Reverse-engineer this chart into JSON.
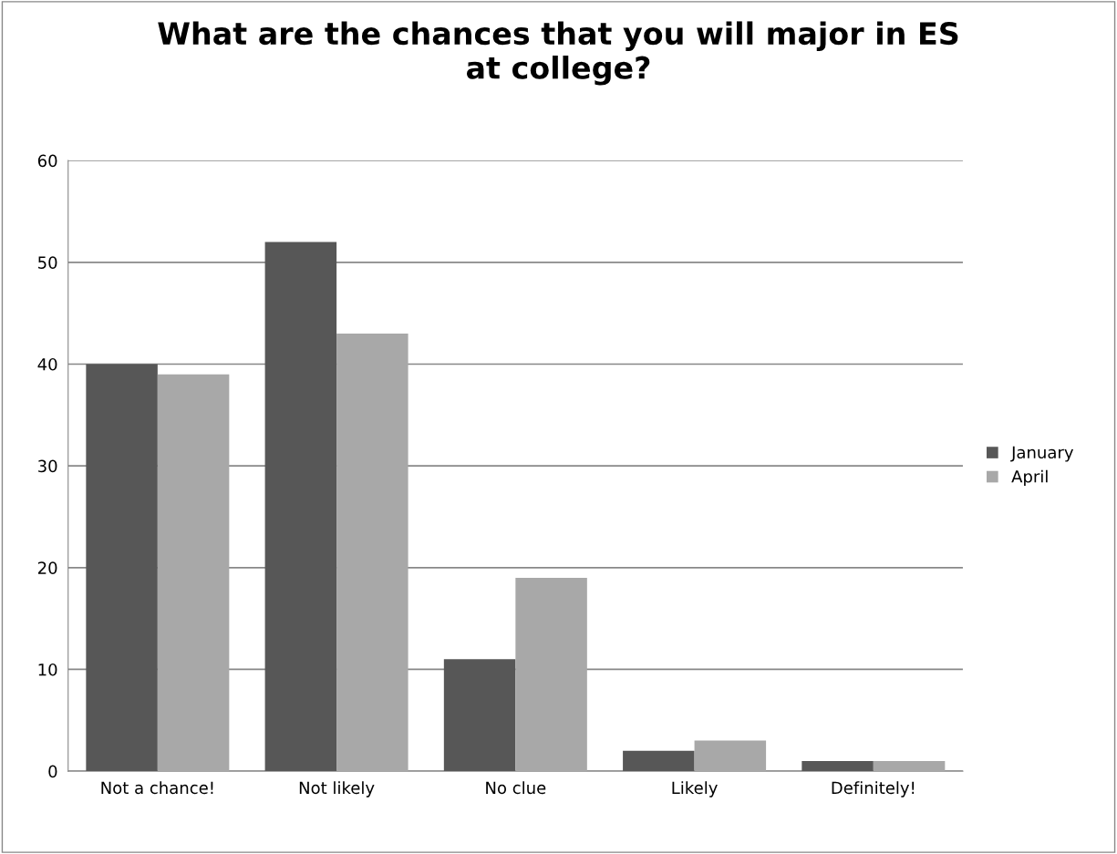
{
  "chart_data": {
    "type": "bar",
    "title": "What are the chances that you will major in ES\nat college?",
    "categories": [
      "Not a chance!",
      "Not likely",
      "No clue",
      "Likely",
      "Definitely!"
    ],
    "series": [
      {
        "name": "January",
        "color": "#575757",
        "values": [
          40,
          52,
          11,
          2,
          1
        ]
      },
      {
        "name": "April",
        "color": "#a8a8a8",
        "values": [
          39,
          43,
          19,
          3,
          1
        ]
      }
    ],
    "ylim": [
      0,
      60
    ],
    "yticks": [
      0,
      10,
      20,
      30,
      40,
      50,
      60
    ],
    "grid": "y",
    "legend": "right"
  }
}
